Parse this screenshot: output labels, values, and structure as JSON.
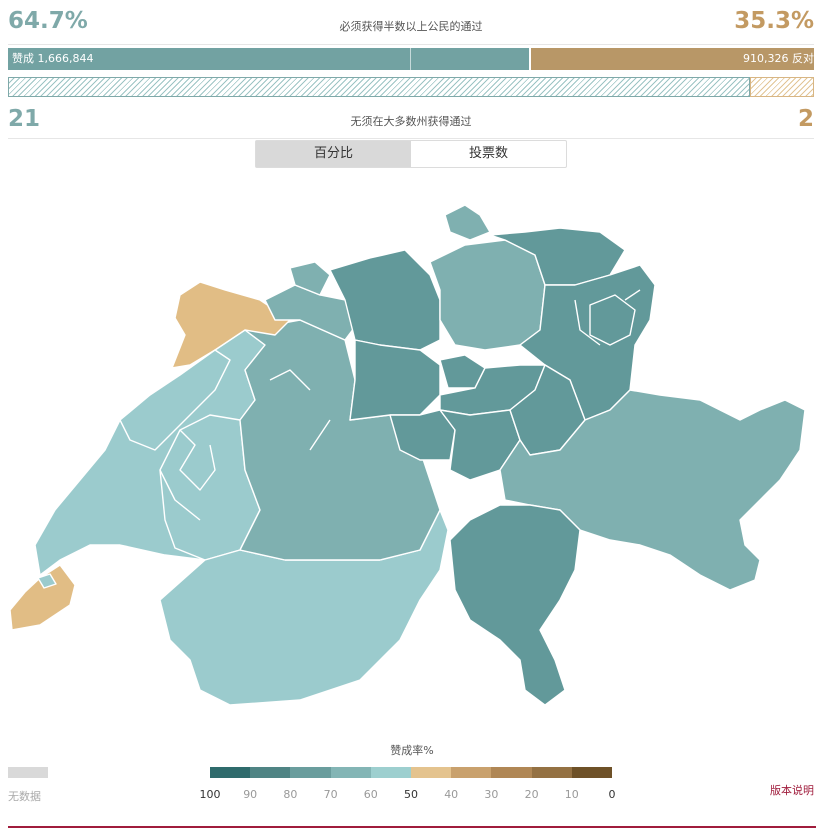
{
  "summary": {
    "yes_pct": "64.7%",
    "no_pct": "35.3%",
    "popular_note": "必须获得半数以上公民的通过",
    "yes_votes_label": "赞成 1,666,844",
    "no_votes_label": "910,326 反对",
    "yes_share": 0.647,
    "yes_cantons": "21",
    "no_cantons": "2",
    "canton_share_yes": 23,
    "canton_share_total": 25,
    "canton_note": "无须在大多数州获得通过"
  },
  "toggle": {
    "percent_label": "百分比",
    "votes_label": "投票数",
    "active": "percent"
  },
  "map": {
    "colors": {
      "yes_high": "#62999a",
      "yes_mid": "#7fb0b0",
      "yes_low": "#9bcbcd",
      "no_low": "#e1bd85"
    }
  },
  "legend": {
    "title": "赞成率%",
    "no_data_label": "无数据",
    "no_data_color": "#d9d9d9",
    "swatches": [
      "#2f6b6c",
      "#4f8484",
      "#6a9d9d",
      "#83b5b5",
      "#9dcfcf",
      "#e4c38e",
      "#c9a16d",
      "#b08755",
      "#947143",
      "#6e5128"
    ],
    "ticks": [
      "100",
      "90",
      "80",
      "70",
      "60",
      "50",
      "40",
      "30",
      "20",
      "10",
      "0"
    ]
  },
  "version_note": "版本说明"
}
